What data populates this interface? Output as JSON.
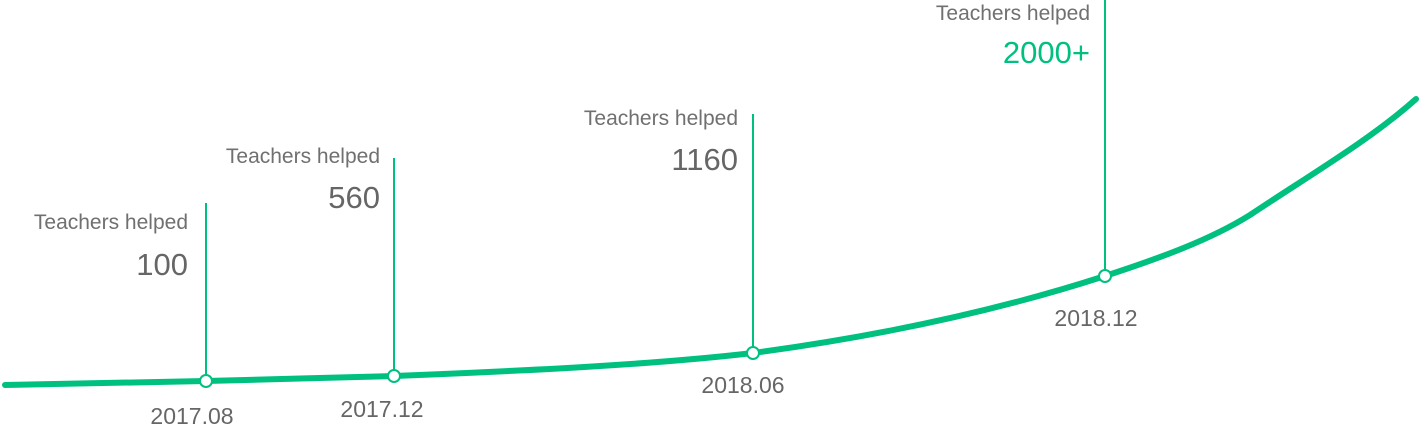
{
  "chart_data": {
    "type": "line",
    "title": "",
    "xlabel": "",
    "ylabel": "",
    "grid": false,
    "line_color": "#00c07f",
    "text_color": "#666666",
    "highlight_color": "#00c07f",
    "milestones": [
      {
        "date": "2017.08",
        "label": "Teachers helped",
        "value": "100",
        "highlight": false
      },
      {
        "date": "2017.12",
        "label": "Teachers helped",
        "value": "560",
        "highlight": false
      },
      {
        "date": "2018.06",
        "label": "Teachers helped",
        "value": "1160",
        "highlight": false
      },
      {
        "date": "2018.12",
        "label": "Teachers helped",
        "value": "2000+",
        "highlight": true
      }
    ]
  }
}
